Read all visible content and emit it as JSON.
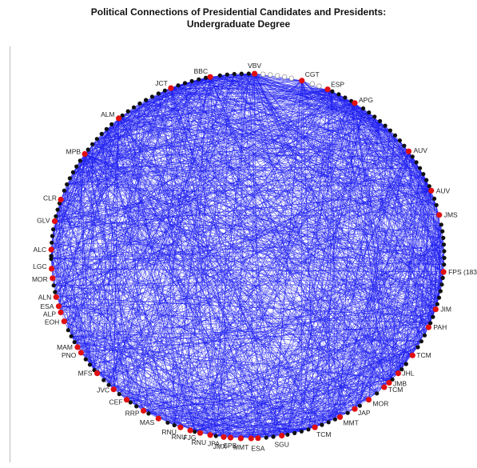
{
  "figure": {
    "title_line1": "Political Connections of Presidential Candidates and Presidents:",
    "title_line2": "Undergraduate Degree"
  },
  "colors": {
    "edge": "#1c1cf0",
    "candidate_node": "#e01010",
    "other_node": "#111111",
    "hollow_node": "#9a9a9a"
  },
  "node_labels": [
    {
      "text": "VBV",
      "anchor": "middle"
    },
    {
      "text": "BBC",
      "anchor": "end"
    },
    {
      "text": "JCT",
      "anchor": "end"
    },
    {
      "text": "ALM",
      "anchor": "end"
    },
    {
      "text": "MPB",
      "anchor": "end"
    },
    {
      "text": "CLR",
      "anchor": "end"
    },
    {
      "text": "GLV",
      "anchor": "end"
    },
    {
      "text": "ALC",
      "anchor": "end"
    },
    {
      "text": "LGC",
      "anchor": "end"
    },
    {
      "text": "MOR",
      "anchor": "end"
    },
    {
      "text": "ALN",
      "anchor": "end"
    },
    {
      "text": "ESA",
      "anchor": "end"
    },
    {
      "text": "ALP",
      "anchor": "end"
    },
    {
      "text": "EOH",
      "anchor": "end"
    },
    {
      "text": "MAM",
      "anchor": "end"
    },
    {
      "text": "PNO",
      "anchor": "end"
    },
    {
      "text": "MFS",
      "anchor": "end"
    },
    {
      "text": "JVC",
      "anchor": "end"
    },
    {
      "text": "CEF",
      "anchor": "end"
    },
    {
      "text": "RRP",
      "anchor": "end"
    },
    {
      "text": "MAS",
      "anchor": "end"
    },
    {
      "text": "RNU",
      "anchor": "end"
    },
    {
      "text": "RNU",
      "anchor": "end"
    },
    {
      "text": "FJG",
      "anchor": "end"
    },
    {
      "text": "RNU",
      "anchor": "end"
    },
    {
      "text": "JPA",
      "anchor": "end"
    },
    {
      "text": "JMX",
      "anchor": "end"
    },
    {
      "text": "SPB",
      "anchor": "end"
    },
    {
      "text": "MMT",
      "anchor": "end"
    },
    {
      "text": "ESA",
      "anchor": "middle"
    },
    {
      "text": "SGU",
      "anchor": "middle"
    },
    {
      "text": "TCM",
      "anchor": "start"
    },
    {
      "text": "MMT",
      "anchor": "start"
    },
    {
      "text": "JAP",
      "anchor": "start"
    },
    {
      "text": "MOR",
      "anchor": "start"
    },
    {
      "text": "TCM",
      "anchor": "start"
    },
    {
      "text": "JMB",
      "anchor": "start"
    },
    {
      "text": "JHL",
      "anchor": "start"
    },
    {
      "text": "TCM",
      "anchor": "start"
    },
    {
      "text": "PAH",
      "anchor": "start"
    },
    {
      "text": "JIM",
      "anchor": "start"
    },
    {
      "text": "FPS (183",
      "anchor": "start"
    },
    {
      "text": "JMS",
      "anchor": "start"
    },
    {
      "text": "AUV",
      "anchor": "start"
    },
    {
      "text": "AUV",
      "anchor": "start"
    },
    {
      "text": "APG",
      "anchor": "start"
    },
    {
      "text": "ESP",
      "anchor": "start"
    },
    {
      "text": "CGT",
      "anchor": "start"
    }
  ]
}
